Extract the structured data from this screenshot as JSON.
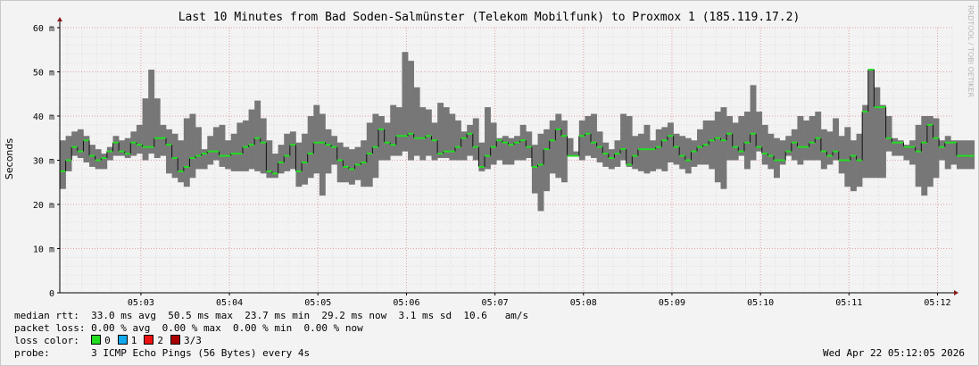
{
  "watermark": "RRDTOOL / TOBI OETIKER",
  "stats": {
    "median_label": "median rtt:",
    "median_values": "33.0 ms avg  50.5 ms max  23.7 ms min  29.2 ms now  3.1 ms sd  10.6   am/s",
    "loss_label": "packet loss:",
    "loss_values": "0.00 % avg  0.00 % max  0.00 % min  0.00 % now",
    "color_label": "loss color:",
    "loss_colors": [
      {
        "label": "0",
        "color": "#22dd22"
      },
      {
        "label": "1",
        "color": "#11aaee"
      },
      {
        "label": "2",
        "color": "#ee1111"
      },
      {
        "label": "3/3",
        "color": "#aa0000"
      }
    ],
    "probe_label": "probe:",
    "probe_value": "3 ICMP Echo Pings (56 Bytes) every 4s",
    "timestamp": "Wed Apr 22 05:12:05 2026"
  },
  "chart_data": {
    "type": "bar",
    "title": "Last 10 Minutes from Bad Soden-Salmünster (Telekom Mobilfunk) to Proxmox 1 (185.119.17.2)",
    "ylabel": "Seconds",
    "ylim": [
      0,
      0.06
    ],
    "yticks": [
      0,
      0.01,
      0.02,
      0.03,
      0.04,
      0.05,
      0.06
    ],
    "yticklabels": [
      "0",
      "10 m",
      "20 m",
      "30 m",
      "40 m",
      "50 m",
      "60 m"
    ],
    "xticklabels": [
      "05:03",
      "05:04",
      "05:05",
      "05:06",
      "05:07",
      "05:08",
      "05:09",
      "05:10",
      "05:11",
      "05:12"
    ],
    "x_range_seconds": [
      0,
      605
    ],
    "xtick_seconds": [
      55,
      115,
      175,
      235,
      295,
      355,
      415,
      475,
      535,
      595
    ],
    "step_seconds": 4,
    "grid": true,
    "colors": {
      "smoke": "#777777",
      "median": "#22dd22",
      "grid_major": "#e6a0a0",
      "grid_minor": "#dddddd",
      "axis": "#000000"
    },
    "samples": [
      [
        0.0235,
        0.0275,
        0.0345
      ],
      [
        0.0275,
        0.03,
        0.0355
      ],
      [
        0.031,
        0.033,
        0.0365
      ],
      [
        0.0305,
        0.032,
        0.037
      ],
      [
        0.0295,
        0.0345,
        0.0355
      ],
      [
        0.0285,
        0.031,
        0.0335
      ],
      [
        0.028,
        0.03,
        0.0325
      ],
      [
        0.028,
        0.0305,
        0.0315
      ],
      [
        0.03,
        0.032,
        0.033
      ],
      [
        0.031,
        0.034,
        0.0355
      ],
      [
        0.031,
        0.032,
        0.0345
      ],
      [
        0.0305,
        0.0315,
        0.035
      ],
      [
        0.031,
        0.034,
        0.0365
      ],
      [
        0.0315,
        0.0335,
        0.038
      ],
      [
        0.03,
        0.033,
        0.044
      ],
      [
        0.0315,
        0.033,
        0.0505
      ],
      [
        0.0305,
        0.035,
        0.044
      ],
      [
        0.031,
        0.035,
        0.038
      ],
      [
        0.027,
        0.0335,
        0.037
      ],
      [
        0.026,
        0.0305,
        0.036
      ],
      [
        0.025,
        0.0275,
        0.0345
      ],
      [
        0.024,
        0.0285,
        0.0395
      ],
      [
        0.026,
        0.0305,
        0.0405
      ],
      [
        0.028,
        0.031,
        0.0375
      ],
      [
        0.028,
        0.0315,
        0.0325
      ],
      [
        0.029,
        0.032,
        0.0355
      ],
      [
        0.03,
        0.032,
        0.0375
      ],
      [
        0.0285,
        0.031,
        0.038
      ],
      [
        0.028,
        0.031,
        0.0345
      ],
      [
        0.0275,
        0.0315,
        0.036
      ],
      [
        0.0275,
        0.0315,
        0.0385
      ],
      [
        0.0275,
        0.033,
        0.039
      ],
      [
        0.028,
        0.0335,
        0.0415
      ],
      [
        0.0275,
        0.035,
        0.0435
      ],
      [
        0.027,
        0.034,
        0.0395
      ],
      [
        0.026,
        0.0275,
        0.0345
      ],
      [
        0.026,
        0.027,
        0.0315
      ],
      [
        0.027,
        0.0295,
        0.0335
      ],
      [
        0.0275,
        0.031,
        0.036
      ],
      [
        0.028,
        0.0335,
        0.0365
      ],
      [
        0.024,
        0.0275,
        0.034
      ],
      [
        0.0245,
        0.0295,
        0.036
      ],
      [
        0.026,
        0.0315,
        0.04
      ],
      [
        0.027,
        0.034,
        0.0425
      ],
      [
        0.022,
        0.034,
        0.0405
      ],
      [
        0.027,
        0.0335,
        0.037
      ],
      [
        0.029,
        0.033,
        0.0355
      ],
      [
        0.025,
        0.03,
        0.034
      ],
      [
        0.025,
        0.0285,
        0.033
      ],
      [
        0.0245,
        0.028,
        0.0325
      ],
      [
        0.0255,
        0.029,
        0.033
      ],
      [
        0.024,
        0.0295,
        0.0345
      ],
      [
        0.024,
        0.0315,
        0.0385
      ],
      [
        0.026,
        0.033,
        0.0405
      ],
      [
        0.03,
        0.037,
        0.04
      ],
      [
        0.03,
        0.034,
        0.0385
      ],
      [
        0.031,
        0.0335,
        0.0425
      ],
      [
        0.031,
        0.0355,
        0.042
      ],
      [
        0.032,
        0.0355,
        0.0545
      ],
      [
        0.03,
        0.036,
        0.0525
      ],
      [
        0.031,
        0.035,
        0.0465
      ],
      [
        0.03,
        0.035,
        0.042
      ],
      [
        0.031,
        0.0355,
        0.0415
      ],
      [
        0.03,
        0.0345,
        0.0385
      ],
      [
        0.0305,
        0.0315,
        0.043
      ],
      [
        0.0305,
        0.032,
        0.042
      ],
      [
        0.03,
        0.032,
        0.0405
      ],
      [
        0.03,
        0.033,
        0.039
      ],
      [
        0.03,
        0.035,
        0.0365
      ],
      [
        0.031,
        0.036,
        0.038
      ],
      [
        0.03,
        0.033,
        0.0395
      ],
      [
        0.0275,
        0.0285,
        0.034
      ],
      [
        0.028,
        0.031,
        0.042
      ],
      [
        0.029,
        0.033,
        0.0385
      ],
      [
        0.03,
        0.0345,
        0.035
      ],
      [
        0.029,
        0.034,
        0.0355
      ],
      [
        0.029,
        0.0335,
        0.035
      ],
      [
        0.03,
        0.034,
        0.0355
      ],
      [
        0.03,
        0.0345,
        0.038
      ],
      [
        0.0305,
        0.033,
        0.0365
      ],
      [
        0.0225,
        0.0285,
        0.0335
      ],
      [
        0.0185,
        0.029,
        0.036
      ],
      [
        0.023,
        0.0325,
        0.037
      ],
      [
        0.027,
        0.0345,
        0.039
      ],
      [
        0.026,
        0.037,
        0.0405
      ],
      [
        0.025,
        0.0355,
        0.039
      ],
      [
        0.031,
        0.031,
        0.035
      ],
      [
        0.031,
        0.031,
        0.032
      ],
      [
        0.03,
        0.0355,
        0.039
      ],
      [
        0.031,
        0.036,
        0.04
      ],
      [
        0.0305,
        0.034,
        0.0405
      ],
      [
        0.0295,
        0.033,
        0.0365
      ],
      [
        0.0285,
        0.0315,
        0.034
      ],
      [
        0.028,
        0.0305,
        0.0325
      ],
      [
        0.0285,
        0.0315,
        0.0345
      ],
      [
        0.03,
        0.0325,
        0.0405
      ],
      [
        0.0285,
        0.029,
        0.04
      ],
      [
        0.028,
        0.031,
        0.0355
      ],
      [
        0.0275,
        0.0325,
        0.036
      ],
      [
        0.027,
        0.0325,
        0.038
      ],
      [
        0.0275,
        0.0325,
        0.0345
      ],
      [
        0.028,
        0.033,
        0.037
      ],
      [
        0.0275,
        0.0345,
        0.0375
      ],
      [
        0.0295,
        0.0355,
        0.0385
      ],
      [
        0.029,
        0.033,
        0.036
      ],
      [
        0.028,
        0.031,
        0.0355
      ],
      [
        0.027,
        0.03,
        0.035
      ],
      [
        0.0285,
        0.032,
        0.0345
      ],
      [
        0.029,
        0.033,
        0.037
      ],
      [
        0.029,
        0.0335,
        0.039
      ],
      [
        0.028,
        0.0345,
        0.039
      ],
      [
        0.025,
        0.035,
        0.041
      ],
      [
        0.0235,
        0.0345,
        0.042
      ],
      [
        0.03,
        0.036,
        0.04
      ],
      [
        0.03,
        0.033,
        0.0385
      ],
      [
        0.031,
        0.032,
        0.04
      ],
      [
        0.028,
        0.034,
        0.041
      ],
      [
        0.03,
        0.036,
        0.047
      ],
      [
        0.032,
        0.033,
        0.041
      ],
      [
        0.029,
        0.0315,
        0.038
      ],
      [
        0.028,
        0.031,
        0.036
      ],
      [
        0.026,
        0.03,
        0.035
      ],
      [
        0.029,
        0.03,
        0.0345
      ],
      [
        0.031,
        0.032,
        0.0355
      ],
      [
        0.03,
        0.034,
        0.037
      ],
      [
        0.029,
        0.033,
        0.04
      ],
      [
        0.03,
        0.033,
        0.039
      ],
      [
        0.03,
        0.034,
        0.04
      ],
      [
        0.03,
        0.035,
        0.041
      ],
      [
        0.028,
        0.032,
        0.037
      ],
      [
        0.029,
        0.031,
        0.0365
      ],
      [
        0.03,
        0.032,
        0.0395
      ],
      [
        0.027,
        0.03,
        0.0355
      ],
      [
        0.024,
        0.03,
        0.0375
      ],
      [
        0.023,
        0.031,
        0.0345
      ],
      [
        0.024,
        0.03,
        0.036
      ],
      [
        0.026,
        0.041,
        0.0425
      ],
      [
        0.026,
        0.0505,
        0.0505
      ],
      [
        0.026,
        0.042,
        0.0465
      ],
      [
        0.026,
        0.042,
        0.0425
      ],
      [
        0.032,
        0.035,
        0.04
      ],
      [
        0.031,
        0.034,
        0.035
      ],
      [
        0.031,
        0.034,
        0.0345
      ],
      [
        0.03,
        0.033,
        0.0335
      ],
      [
        0.029,
        0.033,
        0.0345
      ],
      [
        0.024,
        0.032,
        0.038
      ],
      [
        0.022,
        0.034,
        0.04
      ],
      [
        0.024,
        0.038,
        0.04
      ],
      [
        0.026,
        0.035,
        0.0395
      ],
      [
        0.03,
        0.033,
        0.0345
      ],
      [
        0.028,
        0.034,
        0.0355
      ],
      [
        0.029,
        0.034,
        0.0345
      ],
      [
        0.028,
        0.031,
        0.0345
      ],
      [
        0.028,
        0.031,
        0.0345
      ],
      [
        0.028,
        0.031,
        0.0345
      ],
      null,
      null,
      null,
      null,
      null,
      null,
      [
        0.028,
        0.036,
        0.036
      ],
      [
        0.03,
        0.035,
        0.0395
      ],
      [
        0.03,
        0.0355,
        0.0375
      ],
      [
        0.032,
        0.036,
        0.043
      ],
      [
        0.032,
        0.033,
        0.046
      ],
      [
        0.028,
        0.033,
        0.038
      ],
      [
        0.029,
        0.033,
        0.0345
      ],
      [
        0.028,
        0.034,
        0.0385
      ],
      [
        0.03,
        0.036,
        0.038
      ],
      [
        0.03,
        0.031,
        0.036
      ],
      [
        0.024,
        0.025,
        0.031
      ],
      [
        0.022,
        0.023,
        0.027
      ]
    ]
  }
}
